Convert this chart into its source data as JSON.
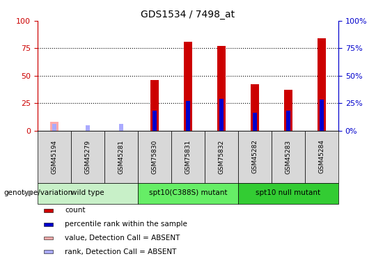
{
  "title": "GDS1534 / 7498_at",
  "samples": [
    "GSM45194",
    "GSM45279",
    "GSM45281",
    "GSM75830",
    "GSM75831",
    "GSM75832",
    "GSM45282",
    "GSM45283",
    "GSM45284"
  ],
  "count_values": [
    null,
    null,
    null,
    46,
    81,
    77,
    42,
    37,
    84
  ],
  "rank_values": [
    null,
    null,
    null,
    18,
    27,
    29,
    16,
    18,
    28
  ],
  "absent_count_values": [
    8,
    null,
    null,
    null,
    null,
    null,
    null,
    null,
    null
  ],
  "absent_rank_values": [
    6,
    5,
    6,
    null,
    null,
    null,
    null,
    null,
    null
  ],
  "groups": [
    {
      "label": "wild type",
      "start": 0,
      "end": 3,
      "color": "#c8f0c8"
    },
    {
      "label": "spt10(C388S) mutant",
      "start": 3,
      "end": 6,
      "color": "#66ee66"
    },
    {
      "label": "spt10 null mutant",
      "start": 6,
      "end": 9,
      "color": "#33cc33"
    }
  ],
  "ylim": [
    0,
    100
  ],
  "grid_values": [
    25,
    50,
    75
  ],
  "left_axis_color": "#cc0000",
  "right_axis_color": "#0000cc",
  "bar_color": "#cc0000",
  "rank_color": "#0000cc",
  "absent_count_color": "#ffaaaa",
  "absent_rank_color": "#aaaaff",
  "bar_width": 0.25,
  "rank_bar_width": 0.12,
  "legend_items": [
    {
      "label": "count",
      "color": "#cc0000"
    },
    {
      "label": "percentile rank within the sample",
      "color": "#0000cc"
    },
    {
      "label": "value, Detection Call = ABSENT",
      "color": "#ffaaaa"
    },
    {
      "label": "rank, Detection Call = ABSENT",
      "color": "#aaaaff"
    }
  ],
  "sample_cell_color": "#d8d8d8",
  "right_axis_labels": [
    "0%",
    "25%",
    "50%",
    "75%",
    "100%"
  ]
}
